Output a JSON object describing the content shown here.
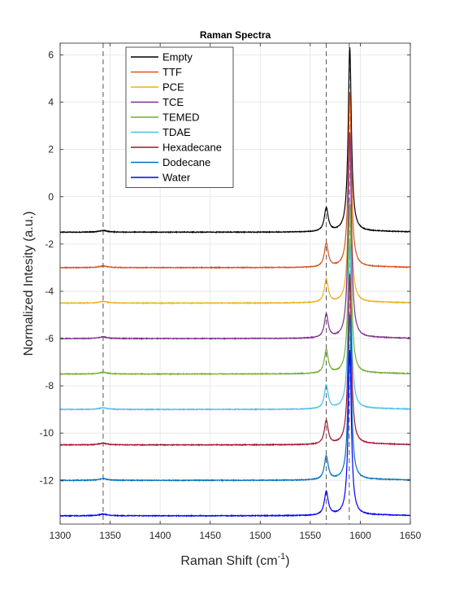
{
  "chart_data": {
    "type": "line",
    "title": "Raman Spectra",
    "xlabel": "Raman Shift (cm",
    "xlabel_sup": "-1",
    "xlabel_end": ")",
    "ylabel": "Normalized Intesity (a.u.)",
    "xlim": [
      1300,
      1650
    ],
    "ylim": [
      -13.85,
      6.5
    ],
    "xticks": [
      1300,
      1350,
      1400,
      1450,
      1500,
      1550,
      1600,
      1650
    ],
    "yticks": [
      -12,
      -10,
      -8,
      -6,
      -4,
      -2,
      0,
      2,
      4,
      6
    ],
    "grid": true,
    "legend_position": "upper-left",
    "reference_lines_x": [
      1343,
      1566,
      1589
    ],
    "series": [
      {
        "name": "Empty",
        "color": "#000000",
        "baseline": -1.5,
        "main_peak_height": 7.8,
        "shoulder_height": 1.0
      },
      {
        "name": "TTF",
        "color": "#D95319",
        "baseline": -3.0,
        "main_peak_height": 7.4,
        "shoulder_height": 1.0
      },
      {
        "name": "PCE",
        "color": "#EDB120",
        "baseline": -4.5,
        "main_peak_height": 6.8,
        "shoulder_height": 1.0
      },
      {
        "name": "TCE",
        "color": "#7E2F8E",
        "baseline": -6.0,
        "main_peak_height": 8.7,
        "shoulder_height": 1.0
      },
      {
        "name": "TEMED",
        "color": "#77AC30",
        "baseline": -7.5,
        "main_peak_height": 7.2,
        "shoulder_height": 1.0
      },
      {
        "name": "TDAE",
        "color": "#4DBEEE",
        "baseline": -9.0,
        "main_peak_height": 7.0,
        "shoulder_height": 1.0
      },
      {
        "name": "Hexadecane",
        "color": "#A2142F",
        "baseline": -10.5,
        "main_peak_height": 7.2,
        "shoulder_height": 1.0
      },
      {
        "name": "Dodecane",
        "color": "#0072BD",
        "baseline": -12.0,
        "main_peak_height": 7.0,
        "shoulder_height": 1.0
      },
      {
        "name": "Water",
        "color": "#0000FF",
        "baseline": -13.5,
        "main_peak_height": 7.0,
        "shoulder_height": 1.0
      }
    ]
  }
}
